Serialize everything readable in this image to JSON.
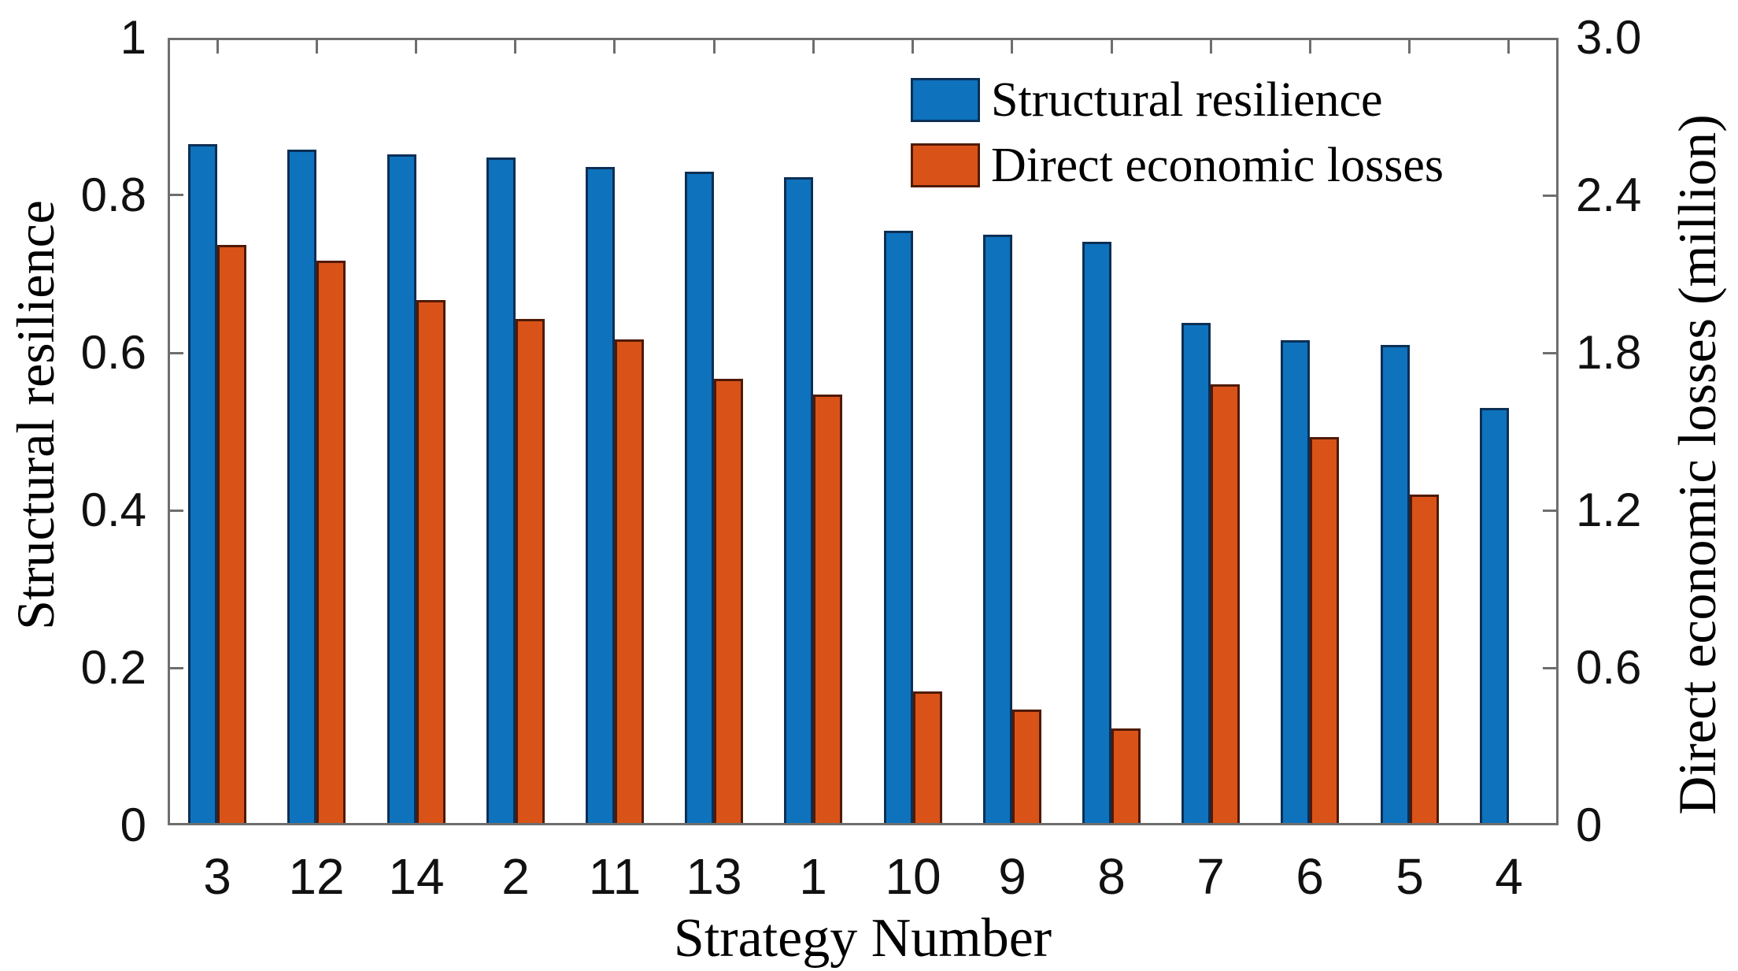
{
  "figure": {
    "background": "#ffffff",
    "frame_color": "#6e6e6e"
  },
  "chart_data": {
    "type": "bar",
    "title": "",
    "xlabel": "Strategy Number",
    "grid": false,
    "legend_position": "top-right-inside",
    "categories": [
      "3",
      "12",
      "14",
      "2",
      "11",
      "13",
      "1",
      "10",
      "9",
      "8",
      "7",
      "6",
      "5",
      "4"
    ],
    "axes": {
      "left": {
        "label": "Structural resilience",
        "min": 0,
        "max": 1,
        "ticks": [
          {
            "value": 1,
            "label": "1"
          },
          {
            "value": 0.8,
            "label": "0.8"
          },
          {
            "value": 0.6,
            "label": "0.6"
          },
          {
            "value": 0.4,
            "label": "0.4"
          },
          {
            "value": 0.2,
            "label": "0.2"
          },
          {
            "value": 0,
            "label": "0"
          }
        ]
      },
      "right": {
        "label": "Direct economic losses (million)",
        "min": 0,
        "max": 3,
        "ticks": [
          {
            "value": 3,
            "label": "3.0"
          },
          {
            "value": 2.4,
            "label": "2.4"
          },
          {
            "value": 1.8,
            "label": "1.8"
          },
          {
            "value": 1.2,
            "label": "1.2"
          },
          {
            "value": 0.6,
            "label": "0.6"
          },
          {
            "value": 0,
            "label": "0"
          }
        ]
      }
    },
    "series": [
      {
        "name": "Structural resilience",
        "axis": "left",
        "color": "#0e72bd",
        "edge_color": "#0c2f55",
        "values": [
          0.865,
          0.858,
          0.852,
          0.848,
          0.836,
          0.83,
          0.823,
          0.755,
          0.75,
          0.741,
          0.638,
          0.616,
          0.61,
          0.53
        ]
      },
      {
        "name": "Direct economic losses",
        "axis": "right",
        "color": "#d95319",
        "edge_color": "#4f1a04",
        "values": [
          2.21,
          2.15,
          2.0,
          1.93,
          1.85,
          1.7,
          1.64,
          0.51,
          0.44,
          0.37,
          1.68,
          1.48,
          1.26,
          0
        ]
      }
    ]
  }
}
